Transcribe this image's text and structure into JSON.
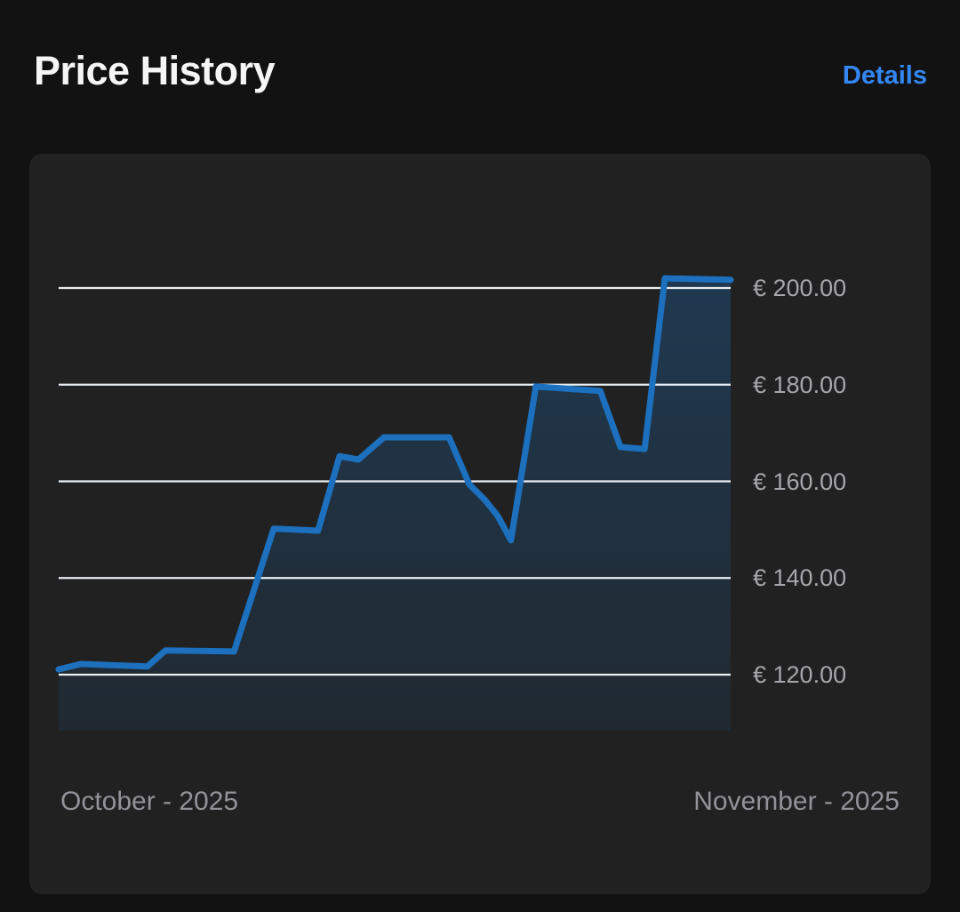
{
  "header": {
    "title": "Price History",
    "details_label": "Details"
  },
  "chart_data": {
    "type": "area",
    "title": "Price History",
    "currency": "EUR",
    "x_axis": {
      "start_label": "October - 2025",
      "end_label": "November - 2025"
    },
    "y_axis": {
      "min": 120,
      "max": 200,
      "grid": true,
      "ticks": [
        {
          "value": 200,
          "label": "€ 200.00"
        },
        {
          "value": 180,
          "label": "€ 180.00"
        },
        {
          "value": 160,
          "label": "€ 160.00"
        },
        {
          "value": 140,
          "label": "€ 140.00"
        },
        {
          "value": 120,
          "label": "€ 120.00"
        }
      ]
    },
    "series": [
      {
        "name": "price",
        "points": [
          {
            "x": 0.0,
            "price": 121.1
          },
          {
            "x": 0.033,
            "price": 122.2
          },
          {
            "x": 0.132,
            "price": 121.7
          },
          {
            "x": 0.159,
            "price": 125.0
          },
          {
            "x": 0.261,
            "price": 124.8
          },
          {
            "x": 0.32,
            "price": 150.2
          },
          {
            "x": 0.386,
            "price": 149.8
          },
          {
            "x": 0.418,
            "price": 165.2
          },
          {
            "x": 0.446,
            "price": 164.5
          },
          {
            "x": 0.484,
            "price": 169.1
          },
          {
            "x": 0.581,
            "price": 169.1
          },
          {
            "x": 0.611,
            "price": 159.4
          },
          {
            "x": 0.634,
            "price": 156.2
          },
          {
            "x": 0.653,
            "price": 152.9
          },
          {
            "x": 0.673,
            "price": 147.8
          },
          {
            "x": 0.71,
            "price": 179.6
          },
          {
            "x": 0.806,
            "price": 178.7
          },
          {
            "x": 0.836,
            "price": 167.1
          },
          {
            "x": 0.872,
            "price": 166.7
          },
          {
            "x": 0.902,
            "price": 202.0
          },
          {
            "x": 1.0,
            "price": 201.7
          }
        ]
      }
    ],
    "colors": {
      "line": "#1c70be",
      "fill_top": "rgba(28,112,190,0.30)",
      "fill_bottom": "rgba(28,112,190,0.10)",
      "grid": "#e9eef3",
      "page_background": "#121212",
      "card_background": "#212121",
      "details_link": "#3287f3"
    }
  }
}
